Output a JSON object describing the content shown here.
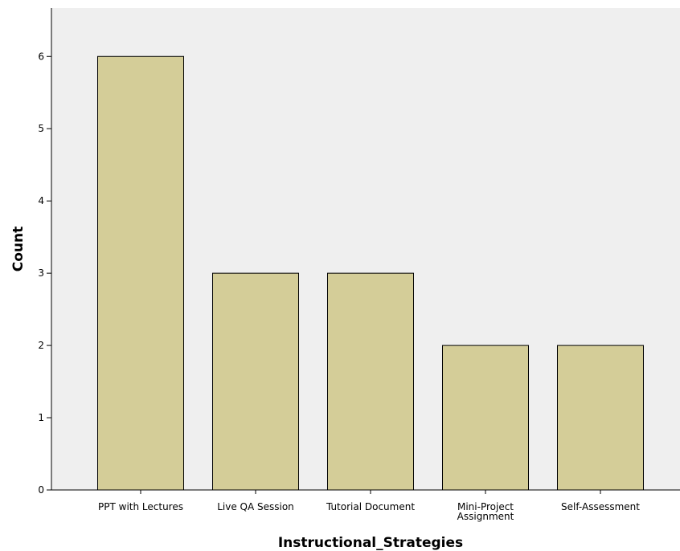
{
  "chart_data": {
    "type": "bar",
    "title": "",
    "xlabel": "Instructional_Strategies",
    "ylabel": "Count",
    "categories": [
      [
        "PPT with Lectures"
      ],
      [
        "Live QA Session"
      ],
      [
        "Tutorial Document"
      ],
      [
        "Mini-Project",
        "Assignment"
      ],
      [
        "Self-Assessment"
      ]
    ],
    "values": [
      6,
      3,
      3,
      2,
      2
    ],
    "yticks": [
      "0",
      "1",
      "2",
      "3",
      "4",
      "5",
      "6"
    ],
    "ylim": [
      0,
      6.67
    ],
    "grid": false,
    "legend": "none"
  },
  "colors": {
    "plot_background": "#EFEFEF",
    "bar_fill": "#D4CD98",
    "bar_stroke": "#000000"
  }
}
